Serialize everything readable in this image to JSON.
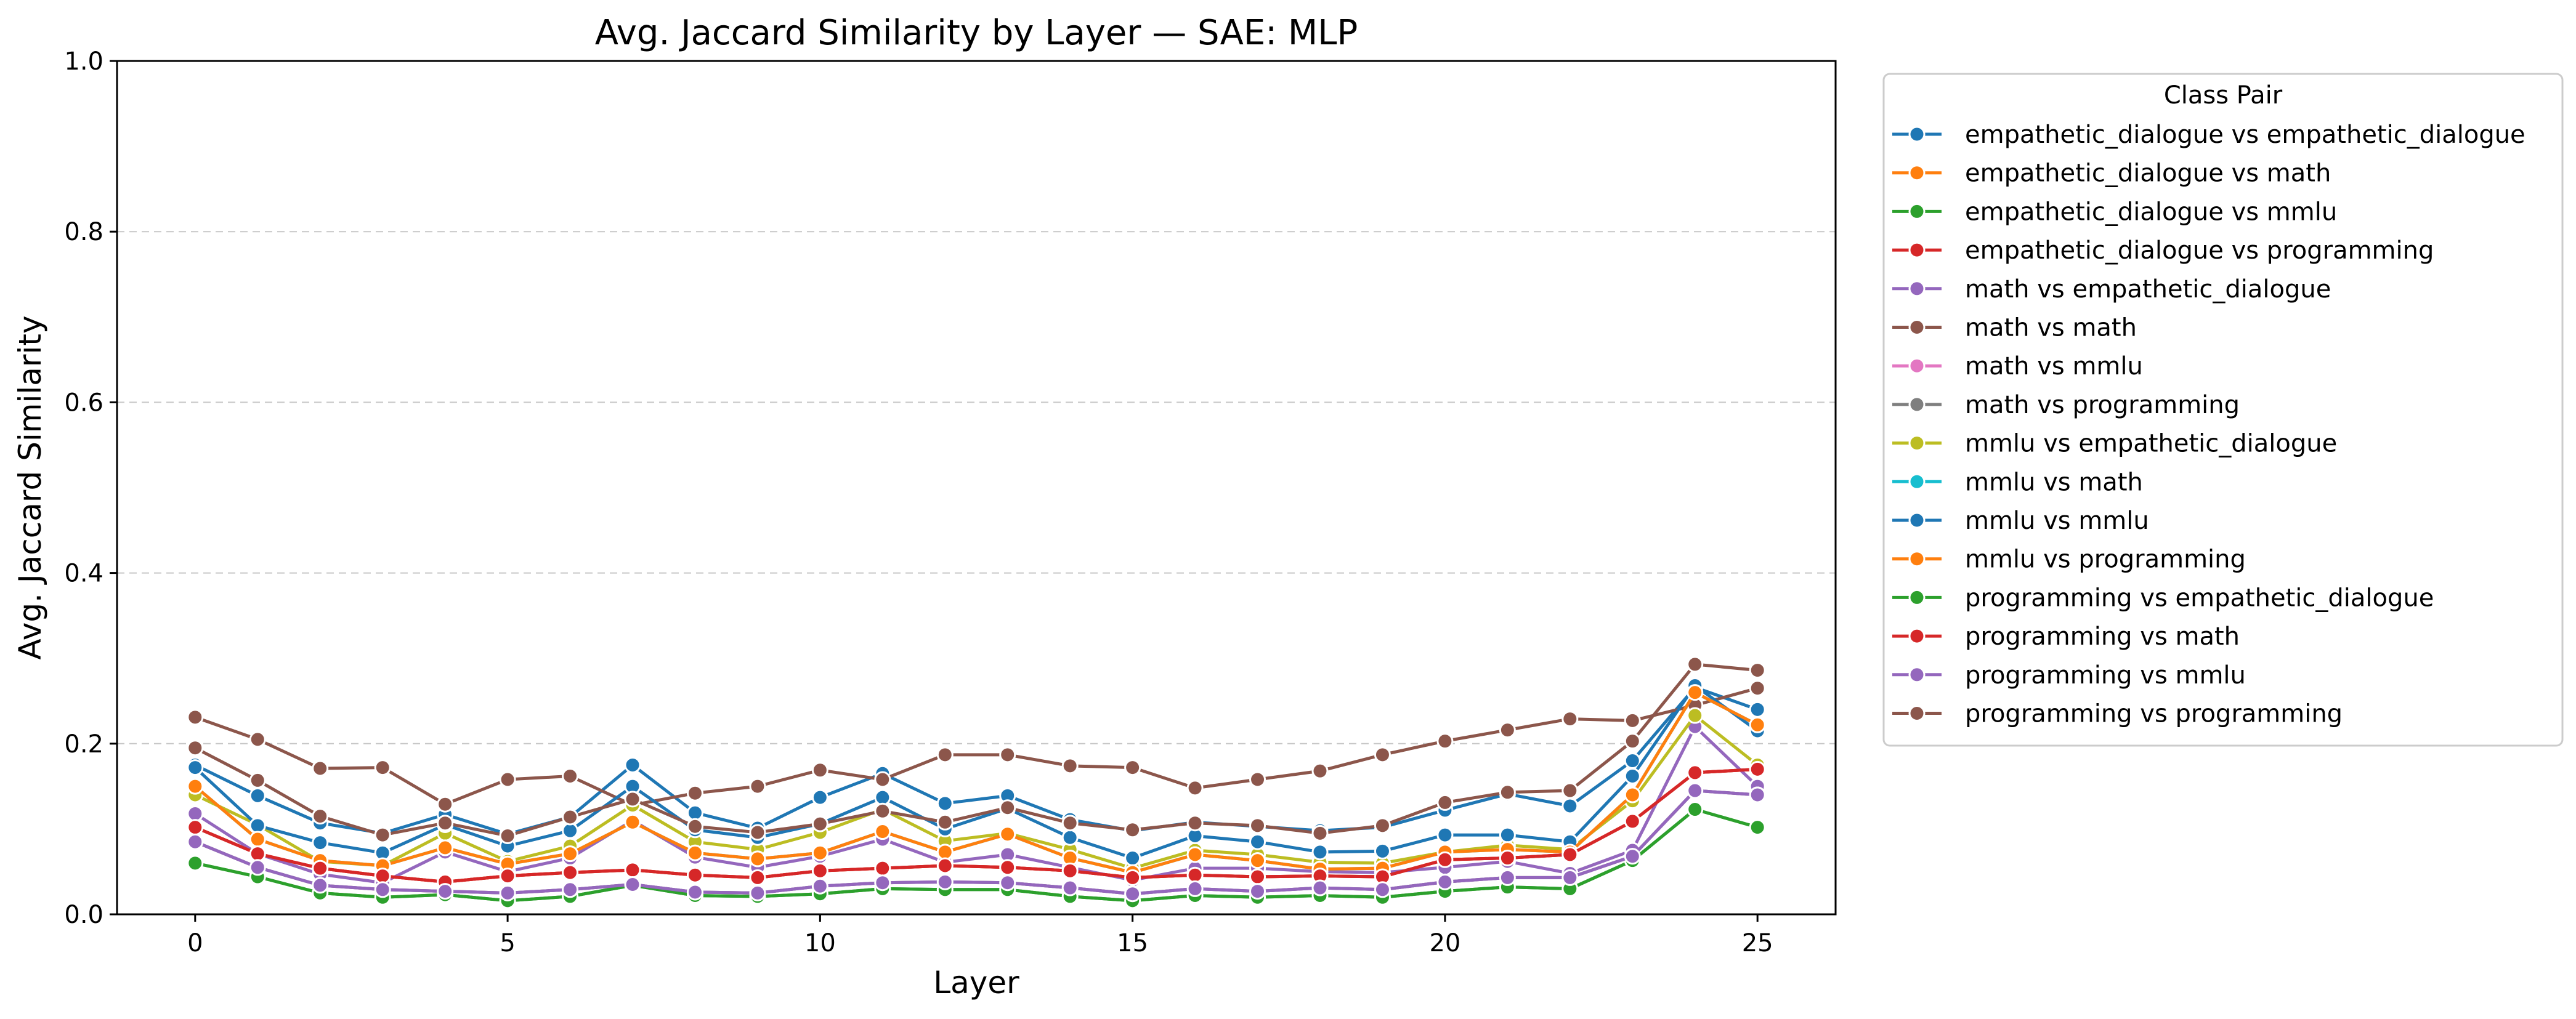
{
  "chart_data": {
    "type": "line",
    "title": "Avg. Jaccard Similarity by Layer — SAE: MLP",
    "xlabel": "Layer",
    "ylabel": "Avg. Jaccard Similarity",
    "xlim": [
      -1.25,
      26.25
    ],
    "ylim": [
      0.0,
      1.0
    ],
    "xticks": [
      0,
      5,
      10,
      15,
      20,
      25
    ],
    "xtick_labels": [
      "0",
      "5",
      "10",
      "15",
      "20",
      "25"
    ],
    "yticks": [
      0.0,
      0.2,
      0.4,
      0.6,
      0.8,
      1.0
    ],
    "ytick_labels": [
      "0.0",
      "0.2",
      "0.4",
      "0.6",
      "0.8",
      "1.0"
    ],
    "grid": "horizontal dashed",
    "legend": {
      "title": "Class Pair",
      "placement": "outside right"
    },
    "x": [
      0,
      1,
      2,
      3,
      4,
      5,
      6,
      7,
      8,
      9,
      10,
      11,
      12,
      13,
      14,
      15,
      16,
      17,
      18,
      19,
      20,
      21,
      22,
      23,
      24,
      25
    ],
    "series": [
      {
        "name": "empathetic_dialogue vs empathetic_dialogue",
        "color": "#1f77b4",
        "values": [
          0.175,
          0.139,
          0.107,
          0.095,
          0.117,
          0.094,
          0.114,
          0.175,
          0.119,
          0.101,
          0.137,
          0.165,
          0.13,
          0.139,
          0.111,
          0.098,
          0.108,
          0.103,
          0.098,
          0.102,
          0.122,
          0.141,
          0.127,
          0.18,
          0.266,
          0.24
        ]
      },
      {
        "name": "empathetic_dialogue vs math",
        "color": "#ff7f0e",
        "values": [
          0.102,
          0.071,
          0.054,
          0.045,
          0.038,
          0.045,
          0.049,
          0.052,
          0.046,
          0.043,
          0.051,
          0.054,
          0.057,
          0.055,
          0.051,
          0.043,
          0.046,
          0.044,
          0.045,
          0.044,
          0.064,
          0.066,
          0.07,
          0.109,
          0.166,
          0.17
        ]
      },
      {
        "name": "empathetic_dialogue vs mmlu",
        "color": "#2ca02c",
        "values": [
          0.06,
          0.044,
          0.025,
          0.02,
          0.023,
          0.016,
          0.021,
          0.034,
          0.022,
          0.021,
          0.024,
          0.03,
          0.029,
          0.029,
          0.021,
          0.016,
          0.022,
          0.02,
          0.022,
          0.02,
          0.027,
          0.032,
          0.03,
          0.063,
          0.123,
          0.102
        ]
      },
      {
        "name": "empathetic_dialogue vs programming",
        "color": "#d62728",
        "values": [
          0.102,
          0.071,
          0.054,
          0.045,
          0.038,
          0.045,
          0.049,
          0.052,
          0.046,
          0.043,
          0.051,
          0.054,
          0.057,
          0.055,
          0.051,
          0.043,
          0.046,
          0.044,
          0.045,
          0.044,
          0.064,
          0.066,
          0.07,
          0.109,
          0.166,
          0.17
        ]
      },
      {
        "name": "math vs empathetic_dialogue",
        "color": "#9467bd",
        "values": [
          0.118,
          0.071,
          0.047,
          0.037,
          0.073,
          0.05,
          0.066,
          0.11,
          0.067,
          0.055,
          0.068,
          0.088,
          0.061,
          0.07,
          0.055,
          0.04,
          0.054,
          0.054,
          0.05,
          0.049,
          0.055,
          0.062,
          0.048,
          0.075,
          0.22,
          0.15
        ]
      },
      {
        "name": "math vs math",
        "color": "#8c564b",
        "values": [
          0.231,
          0.205,
          0.171,
          0.172,
          0.129,
          0.158,
          0.162,
          0.128,
          0.142,
          0.15,
          0.169,
          0.158,
          0.187,
          0.187,
          0.174,
          0.172,
          0.148,
          0.158,
          0.168,
          0.187,
          0.203,
          0.216,
          0.229,
          0.227,
          0.245,
          0.265
        ]
      },
      {
        "name": "math vs mmlu",
        "color": "#e377c2",
        "values": [
          0.085,
          0.055,
          0.034,
          0.029,
          0.027,
          0.025,
          0.029,
          0.035,
          0.026,
          0.025,
          0.033,
          0.037,
          0.038,
          0.037,
          0.031,
          0.024,
          0.03,
          0.027,
          0.031,
          0.029,
          0.038,
          0.043,
          0.043,
          0.068,
          0.145,
          0.14
        ]
      },
      {
        "name": "math vs programming",
        "color": "#7f7f7f",
        "values": [
          0.085,
          0.055,
          0.034,
          0.029,
          0.027,
          0.025,
          0.029,
          0.035,
          0.026,
          0.025,
          0.033,
          0.037,
          0.038,
          0.037,
          0.031,
          0.024,
          0.03,
          0.027,
          0.031,
          0.029,
          0.038,
          0.043,
          0.043,
          0.068,
          0.145,
          0.14
        ]
      },
      {
        "name": "mmlu vs empathetic_dialogue",
        "color": "#bcbd22",
        "values": [
          0.14,
          0.105,
          0.062,
          0.057,
          0.095,
          0.062,
          0.08,
          0.128,
          0.085,
          0.076,
          0.096,
          0.123,
          0.086,
          0.095,
          0.076,
          0.054,
          0.075,
          0.07,
          0.061,
          0.06,
          0.073,
          0.081,
          0.076,
          0.133,
          0.233,
          0.175
        ]
      },
      {
        "name": "mmlu vs math",
        "color": "#17becf",
        "values": [
          0.15,
          0.088,
          0.063,
          0.057,
          0.078,
          0.059,
          0.071,
          0.108,
          0.072,
          0.065,
          0.072,
          0.097,
          0.073,
          0.094,
          0.066,
          0.049,
          0.07,
          0.063,
          0.053,
          0.054,
          0.073,
          0.076,
          0.073,
          0.14,
          0.26,
          0.222
        ]
      },
      {
        "name": "mmlu vs mmlu",
        "color": "#1f77b4",
        "values": [
          0.172,
          0.104,
          0.084,
          0.072,
          0.105,
          0.08,
          0.098,
          0.15,
          0.099,
          0.09,
          0.106,
          0.137,
          0.1,
          0.124,
          0.09,
          0.066,
          0.092,
          0.085,
          0.073,
          0.074,
          0.093,
          0.093,
          0.085,
          0.162,
          0.268,
          0.215
        ]
      },
      {
        "name": "mmlu vs programming",
        "color": "#ff7f0e",
        "values": [
          0.15,
          0.088,
          0.063,
          0.057,
          0.078,
          0.059,
          0.071,
          0.108,
          0.072,
          0.065,
          0.072,
          0.097,
          0.073,
          0.094,
          0.066,
          0.049,
          0.07,
          0.063,
          0.053,
          0.054,
          0.073,
          0.076,
          0.073,
          0.14,
          0.26,
          0.222
        ]
      },
      {
        "name": "programming vs empathetic_dialogue",
        "color": "#2ca02c",
        "values": [
          0.06,
          0.044,
          0.025,
          0.02,
          0.023,
          0.016,
          0.021,
          0.034,
          0.022,
          0.021,
          0.024,
          0.03,
          0.029,
          0.029,
          0.021,
          0.016,
          0.022,
          0.02,
          0.022,
          0.02,
          0.027,
          0.032,
          0.03,
          0.063,
          0.123,
          0.102
        ]
      },
      {
        "name": "programming vs math",
        "color": "#d62728",
        "values": [
          0.102,
          0.071,
          0.054,
          0.045,
          0.038,
          0.045,
          0.049,
          0.052,
          0.046,
          0.043,
          0.051,
          0.054,
          0.057,
          0.055,
          0.051,
          0.043,
          0.046,
          0.044,
          0.045,
          0.044,
          0.064,
          0.066,
          0.07,
          0.109,
          0.166,
          0.17
        ]
      },
      {
        "name": "programming vs mmlu",
        "color": "#9467bd",
        "values": [
          0.085,
          0.055,
          0.034,
          0.029,
          0.027,
          0.025,
          0.029,
          0.035,
          0.026,
          0.025,
          0.033,
          0.037,
          0.038,
          0.037,
          0.031,
          0.024,
          0.03,
          0.027,
          0.031,
          0.029,
          0.038,
          0.043,
          0.043,
          0.068,
          0.145,
          0.14
        ]
      },
      {
        "name": "programming vs programming",
        "color": "#8c564b",
        "values": [
          0.195,
          0.157,
          0.115,
          0.093,
          0.107,
          0.092,
          0.114,
          0.135,
          0.103,
          0.096,
          0.106,
          0.121,
          0.108,
          0.125,
          0.107,
          0.099,
          0.107,
          0.104,
          0.095,
          0.104,
          0.131,
          0.143,
          0.145,
          0.203,
          0.293,
          0.286
        ]
      }
    ]
  }
}
